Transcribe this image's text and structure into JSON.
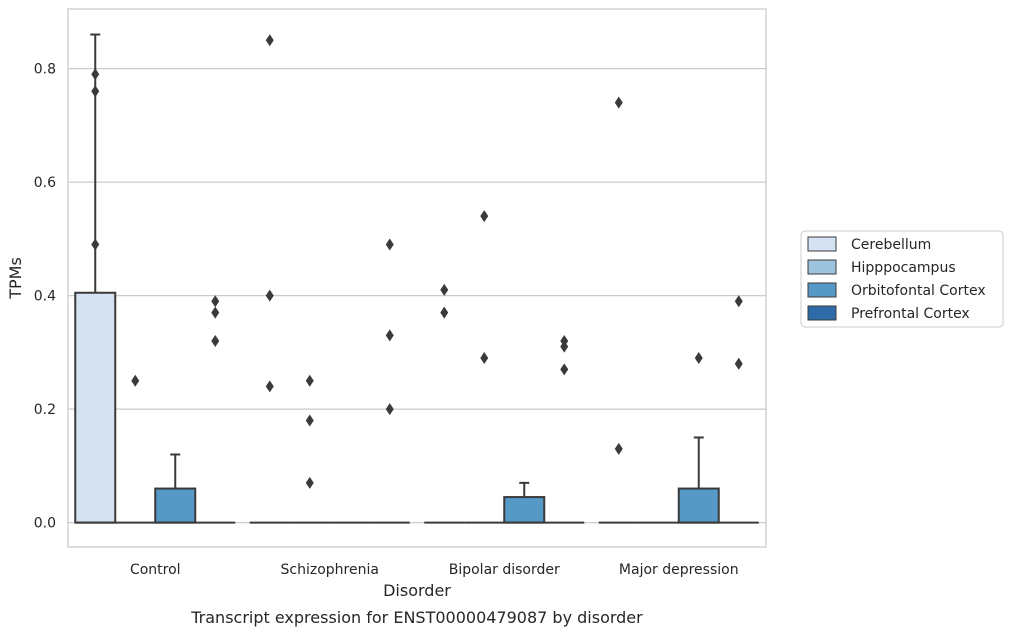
{
  "chart_data": {
    "type": "box",
    "title": "Transcript expression for ENST00000479087 by disorder",
    "xlabel": "Disorder",
    "ylabel": "TPMs",
    "ylim": [
      -0.043,
      0.905
    ],
    "yticks": [
      0.0,
      0.2,
      0.4,
      0.6,
      0.8
    ],
    "ytick_labels": [
      "0.0",
      "0.2",
      "0.4",
      "0.6",
      "0.8"
    ],
    "grid": "horizontal",
    "legend_position": "right",
    "categories": [
      "Control",
      "Schizophrenia",
      "Bipolar disorder",
      "Major depression"
    ],
    "series": [
      {
        "name": "Cerebellum",
        "color": "#d4e2f1",
        "boxes": [
          {
            "q1": 0,
            "median": 0,
            "q3": 0.405,
            "whisker_low": 0,
            "whisker_high": 0.86,
            "outliers": [
              0.79,
              0.76,
              0.49
            ]
          },
          {
            "q1": 0,
            "median": 0,
            "q3": 0,
            "whisker_low": 0,
            "whisker_high": 0,
            "outliers": [
              0.85,
              0.4,
              0.24
            ]
          },
          {
            "q1": 0,
            "median": 0,
            "q3": 0,
            "whisker_low": 0,
            "whisker_high": 0,
            "outliers": [
              0.41,
              0.37
            ]
          },
          {
            "q1": 0,
            "median": 0,
            "q3": 0,
            "whisker_low": 0,
            "whisker_high": 0,
            "outliers": [
              0.74,
              0.13
            ]
          }
        ]
      },
      {
        "name": "Hipppocampus",
        "color": "#9dc3de",
        "boxes": [
          {
            "q1": 0,
            "median": 0,
            "q3": 0,
            "whisker_low": 0,
            "whisker_high": 0,
            "outliers": [
              0.25
            ]
          },
          {
            "q1": 0,
            "median": 0,
            "q3": 0,
            "whisker_low": 0,
            "whisker_high": 0,
            "outliers": [
              0.25,
              0.18,
              0.07
            ]
          },
          {
            "q1": 0,
            "median": 0,
            "q3": 0,
            "whisker_low": 0,
            "whisker_high": 0,
            "outliers": [
              0.54,
              0.29
            ]
          },
          {
            "q1": 0,
            "median": 0,
            "q3": 0,
            "whisker_low": 0,
            "whisker_high": 0,
            "outliers": []
          }
        ]
      },
      {
        "name": "Orbitofontal Cortex",
        "color": "#5698c6",
        "boxes": [
          {
            "q1": 0,
            "median": 0,
            "q3": 0.06,
            "whisker_low": 0,
            "whisker_high": 0.12,
            "outliers": []
          },
          {
            "q1": 0,
            "median": 0,
            "q3": 0,
            "whisker_low": 0,
            "whisker_high": 0,
            "outliers": []
          },
          {
            "q1": 0,
            "median": 0,
            "q3": 0.045,
            "whisker_low": 0,
            "whisker_high": 0.07,
            "outliers": []
          },
          {
            "q1": 0,
            "median": 0,
            "q3": 0.06,
            "whisker_low": 0,
            "whisker_high": 0.15,
            "outliers": [
              0.29
            ]
          }
        ]
      },
      {
        "name": "Prefrontal Cortex",
        "color": "#2e6ca8",
        "boxes": [
          {
            "q1": 0,
            "median": 0,
            "q3": 0,
            "whisker_low": 0,
            "whisker_high": 0,
            "outliers": [
              0.39,
              0.37,
              0.32
            ]
          },
          {
            "q1": 0,
            "median": 0,
            "q3": 0,
            "whisker_low": 0,
            "whisker_high": 0,
            "outliers": [
              0.49,
              0.33,
              0.2
            ]
          },
          {
            "q1": 0,
            "median": 0,
            "q3": 0,
            "whisker_low": 0,
            "whisker_high": 0,
            "outliers": [
              0.32,
              0.31,
              0.27
            ]
          },
          {
            "q1": 0,
            "median": 0,
            "q3": 0,
            "whisker_low": 0,
            "whisker_high": 0,
            "outliers": [
              0.39,
              0.28
            ]
          }
        ]
      }
    ]
  }
}
